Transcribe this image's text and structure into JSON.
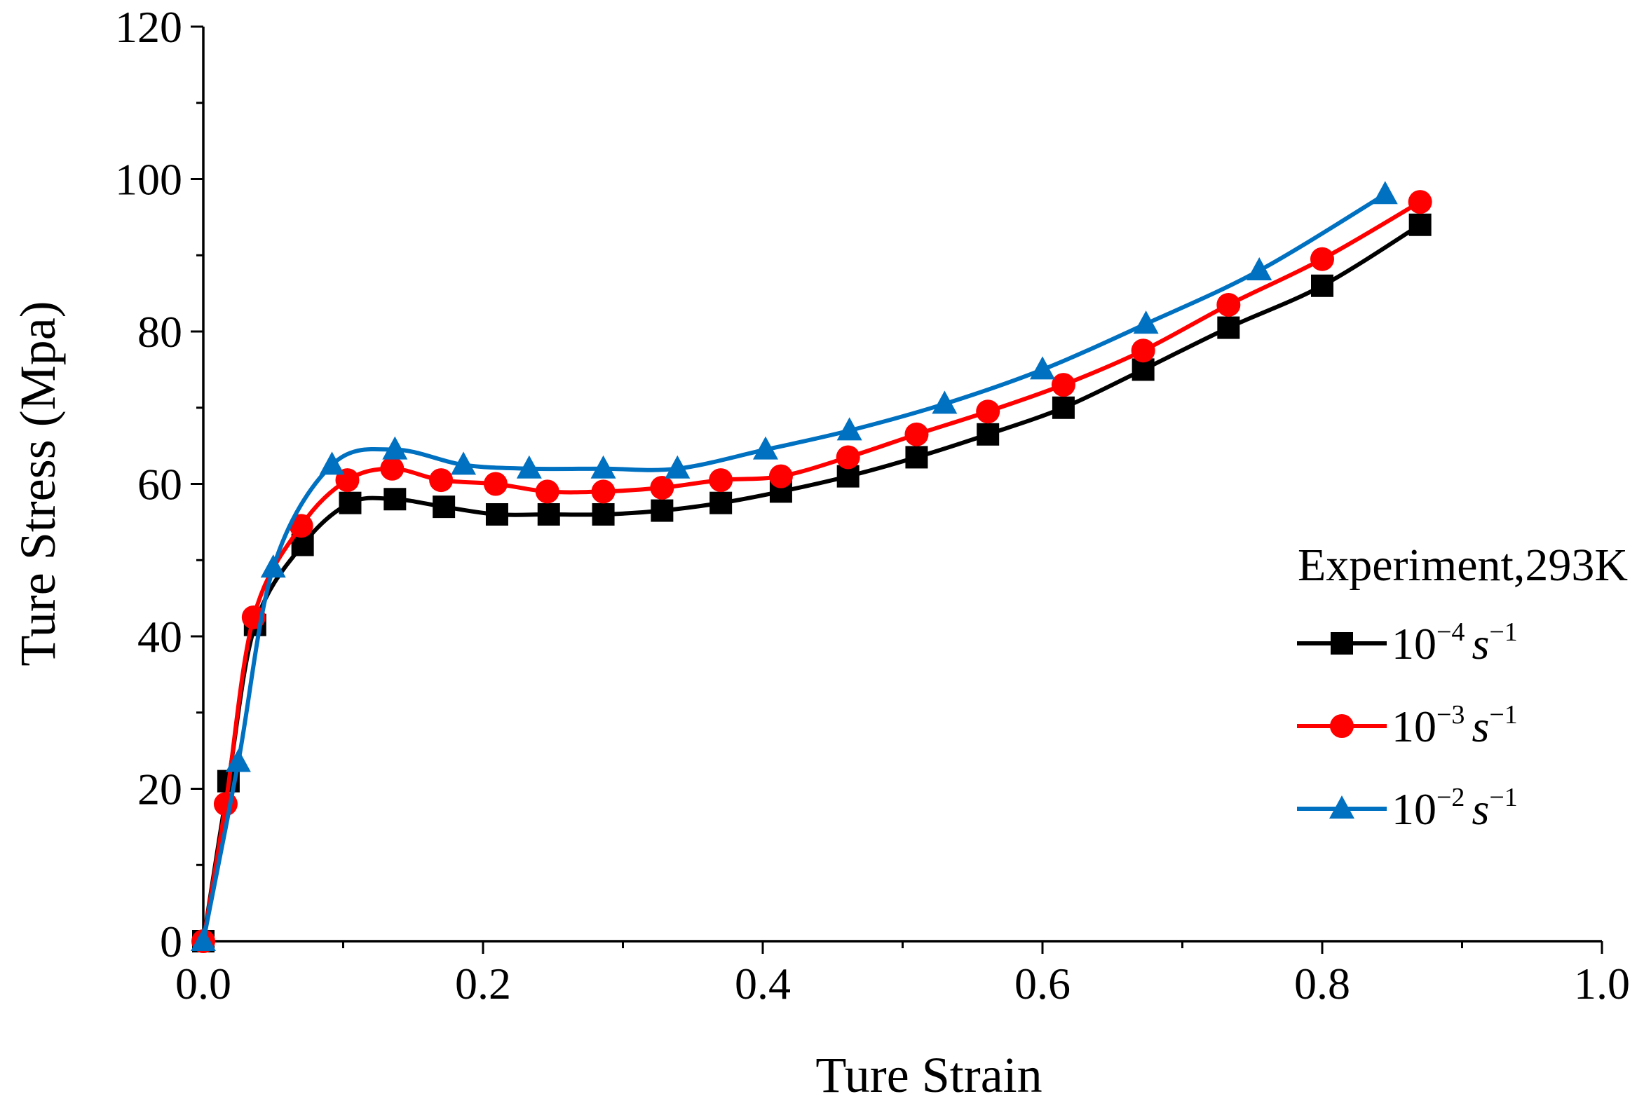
{
  "chart_data": {
    "type": "line",
    "title": "",
    "xlabel": "Ture Strain",
    "ylabel": "Ture Stress  (Mpa)",
    "xlim": [
      0.0,
      1.0
    ],
    "ylim": [
      0,
      120
    ],
    "x_major_ticks": [
      0.0,
      0.2,
      0.4,
      0.6,
      0.8,
      1.0
    ],
    "x_tick_labels": [
      "0.0",
      "0.2",
      "0.4",
      "0.6",
      "0.8",
      "1.0"
    ],
    "x_minor_step": 0.1,
    "y_major_ticks": [
      0,
      20,
      40,
      60,
      80,
      100,
      120
    ],
    "y_tick_labels": [
      "0",
      "20",
      "40",
      "60",
      "80",
      "100",
      "120"
    ],
    "y_minor_step": 10,
    "grid": false,
    "legend": {
      "title": "Experiment,293K",
      "placement": "right",
      "entries": [
        {
          "base": "10",
          "exp": "−4",
          "unit": "s",
          "unit_exp": "−1"
        },
        {
          "base": "10",
          "exp": "−3",
          "unit": "s",
          "unit_exp": "−1"
        },
        {
          "base": "10",
          "exp": "−2",
          "unit": "s",
          "unit_exp": "−1"
        }
      ]
    },
    "series": [
      {
        "name": "10^-4 s^-1",
        "color": "#000000",
        "marker": "square",
        "x": [
          0.0,
          0.018,
          0.037,
          0.071,
          0.105,
          0.137,
          0.172,
          0.21,
          0.247,
          0.286,
          0.328,
          0.37,
          0.413,
          0.461,
          0.51,
          0.561,
          0.615,
          0.672,
          0.733,
          0.8,
          0.87
        ],
        "y": [
          0,
          21,
          41.5,
          52,
          57.5,
          58,
          57,
          56,
          56,
          56,
          56.5,
          57.5,
          59,
          61,
          63.5,
          66.5,
          70,
          75,
          80.5,
          86,
          94
        ]
      },
      {
        "name": "10^-3 s^-1",
        "color": "#ff0000",
        "marker": "circle",
        "x": [
          0.0,
          0.016,
          0.036,
          0.07,
          0.103,
          0.135,
          0.17,
          0.209,
          0.246,
          0.286,
          0.328,
          0.37,
          0.413,
          0.461,
          0.51,
          0.561,
          0.615,
          0.672,
          0.733,
          0.8,
          0.87
        ],
        "y": [
          0,
          18,
          42.5,
          54.5,
          60.5,
          62,
          60.5,
          60,
          59,
          59,
          59.5,
          60.5,
          61,
          63.5,
          66.5,
          69.5,
          73,
          77.5,
          83.5,
          89.5,
          97
        ]
      },
      {
        "name": "10^-2 s^-1",
        "color": "#0070c0",
        "marker": "triangle",
        "x": [
          0.0,
          0.025,
          0.05,
          0.092,
          0.137,
          0.186,
          0.233,
          0.286,
          0.339,
          0.402,
          0.462,
          0.53,
          0.6,
          0.674,
          0.755,
          0.845
        ],
        "y": [
          0,
          23.5,
          49,
          62.5,
          64.5,
          62.5,
          62,
          62,
          62,
          64.5,
          67,
          70.5,
          75,
          81,
          88,
          98
        ]
      }
    ]
  }
}
